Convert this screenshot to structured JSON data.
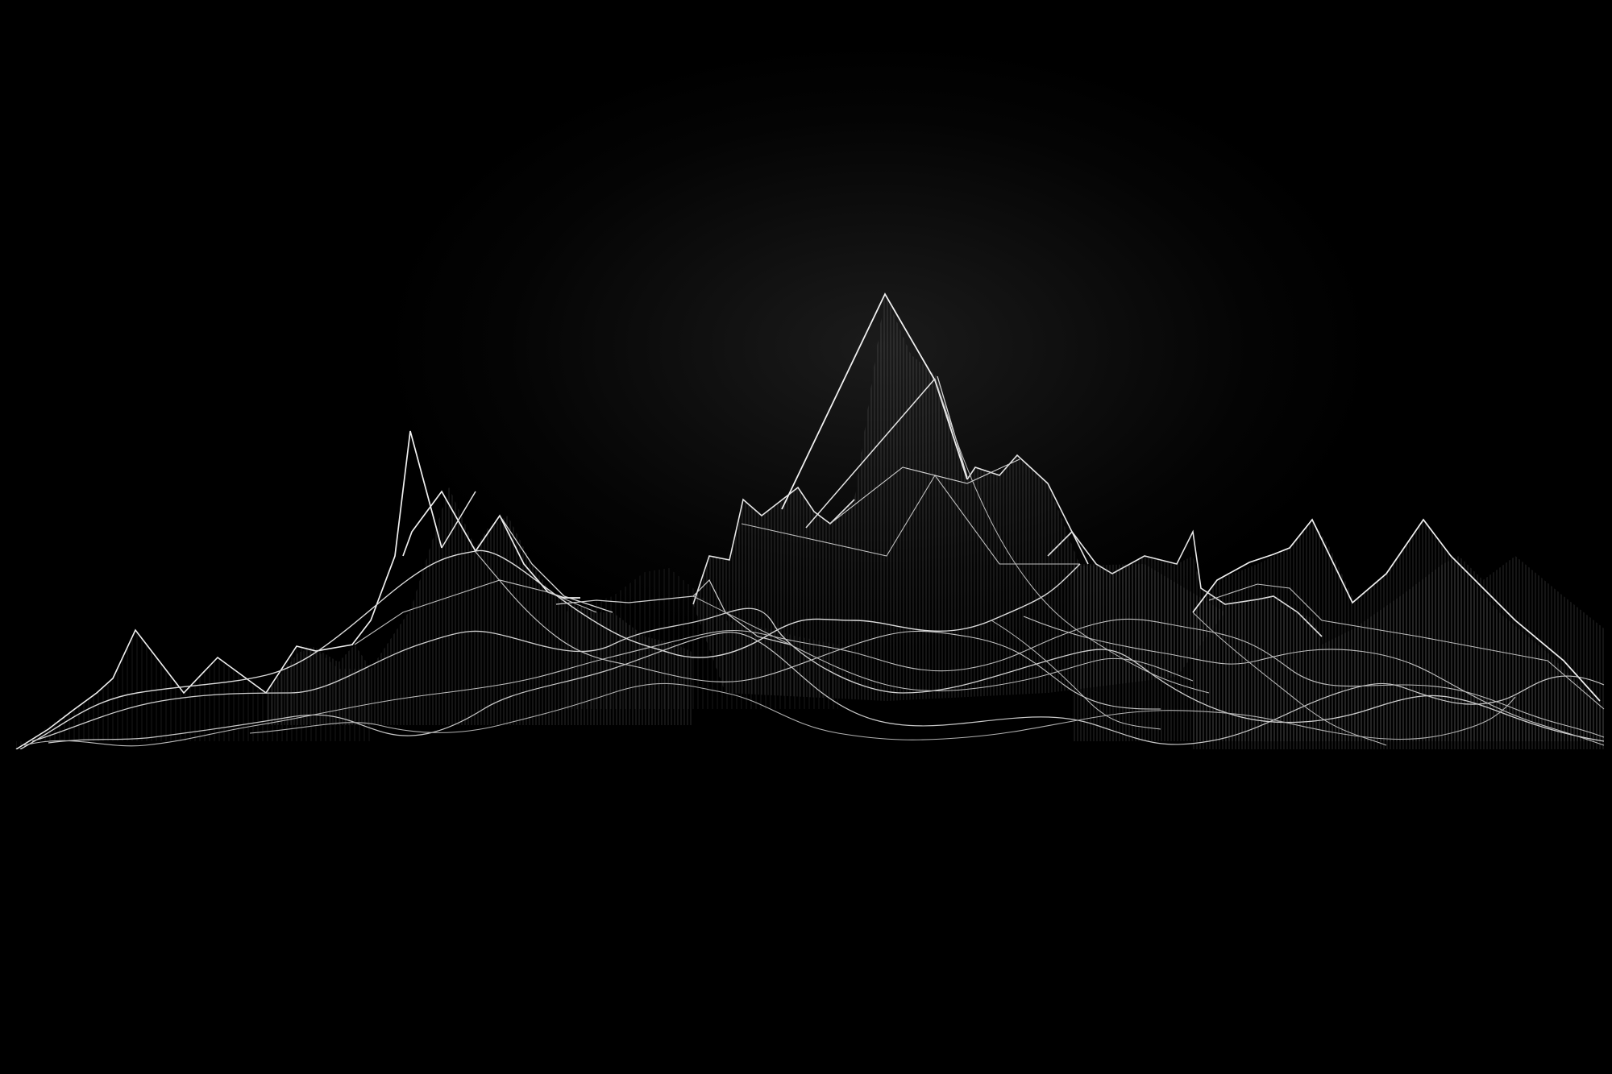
{
  "scene": {
    "subject": "wireframe-mountain-range",
    "colors": {
      "background": "#000000",
      "glow": "#1b1b1b",
      "line": "#e6e6e6",
      "hatch": "#9a9a9a",
      "fill": "#0a0a0a"
    }
  }
}
